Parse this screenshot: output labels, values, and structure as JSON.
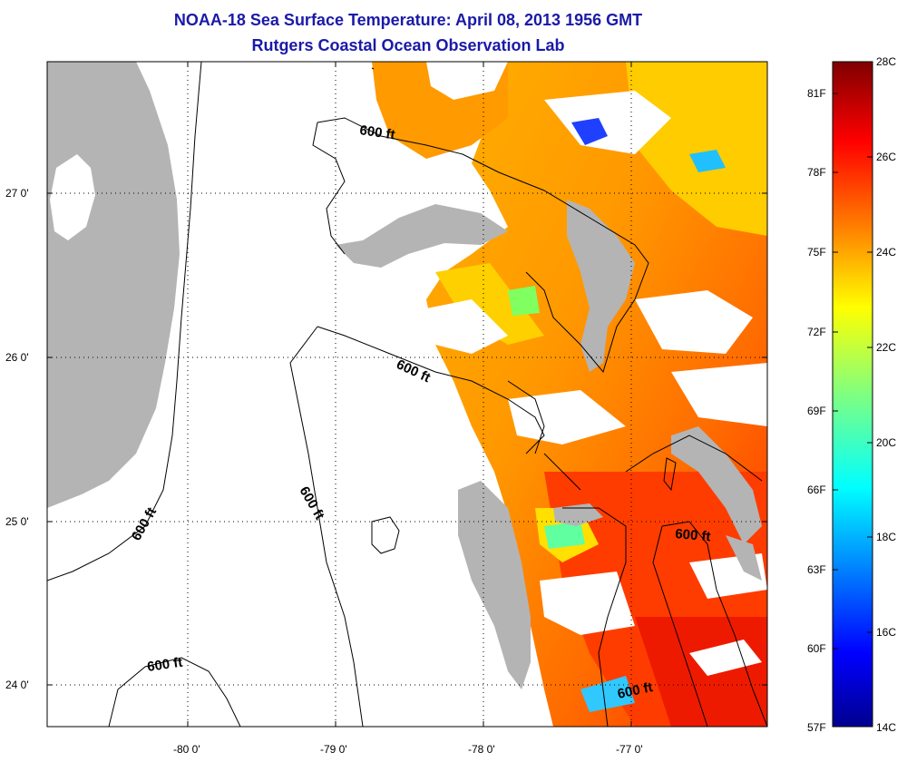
{
  "header": {
    "title": "NOAA-18 Sea Surface Temperature:  April 08, 2013 1956 GMT",
    "subtitle": "Rutgers Coastal Ocean Observation Lab"
  },
  "map": {
    "x_ticks": [
      "-80 0'",
      "-79 0'",
      "-78 0'",
      "-77 0'"
    ],
    "y_ticks": [
      "27 0'",
      "26 0'",
      "25 0'",
      "24 0'"
    ],
    "contour_label": "600 ft",
    "colors": {
      "land": "#b4b4b4",
      "cloud": "#ffffff",
      "contour": "#000000",
      "frame": "#000000"
    }
  },
  "colorbar": {
    "celsius": [
      "28C",
      "26C",
      "24C",
      "22C",
      "20C",
      "18C",
      "16C",
      "14C"
    ],
    "fahrenheit": [
      "81F",
      "78F",
      "75F",
      "72F",
      "69F",
      "66F",
      "63F",
      "60F",
      "57F"
    ],
    "colormap": "jet",
    "colors": [
      "#7f0000",
      "#ff0000",
      "#ff8000",
      "#ffff00",
      "#80ff80",
      "#00ffff",
      "#0080ff",
      "#0000ff",
      "#00008f"
    ]
  }
}
